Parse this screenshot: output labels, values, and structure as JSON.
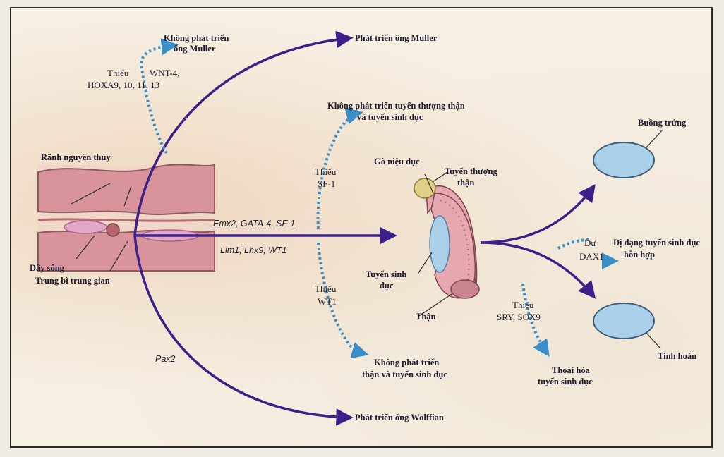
{
  "colors": {
    "arrow_main": "#3d1f8a",
    "arrow_dashed": "#3a8ec8",
    "tissue_pink": "#d9939a",
    "ovary_blue": "#a9cfe9",
    "frame": "#2b2b2b"
  },
  "labels": {
    "muller_dev": "Phát triển ống Muller",
    "no_muller_1": "Không phát triển",
    "no_muller_2": "ống Muller",
    "lack_wnt_1": "Thiếu",
    "lack_wnt_2": "WNT-4,",
    "lack_wnt_3": "HOXA9, 10, 11, 13",
    "no_adrenal_1": "Không phát triển tuyến thượng thận",
    "no_adrenal_2": "và tuyến sinh dục",
    "lack_sf1_1": "Thiếu",
    "lack_sf1_2": "SF-1",
    "urogenital_ridge": "Gò niệu dục",
    "adrenal_1": "Tuyến thượng",
    "adrenal_2": "thận",
    "primitive_streak": "Rãnh nguyên thủy",
    "notochord": "Dây sống",
    "intermediate_mesoderm": "Trung bì trung gian",
    "genes_top": "Emx2, GATA-4, SF-1",
    "genes_bottom": "Lim1, Lhx9, WT1",
    "gonad_1": "Tuyến sinh",
    "gonad_2": "dục",
    "kidney": "Thận",
    "lack_wt1_1": "Thiếu",
    "lack_wt1_2": "WT1",
    "no_kidney_1": "Không phát triển",
    "no_kidney_2": "thận và tuyến sinh dục",
    "pax2": "Pax2",
    "wolffian_dev": "Phát triển ống Wolffian",
    "ovary": "Buồng trứng",
    "excess": "Dư",
    "dax1": "DAX1",
    "mixed_gonad_1": "Dị dạng tuyến sinh dục",
    "mixed_gonad_2": "hỗn hợp",
    "lack_sry_1": "Thiếu",
    "lack_sry_2": "SRY, SOX9",
    "gonad_regress_1": "Thoái hóa",
    "gonad_regress_2": "tuyến sinh dục",
    "testis": "Tinh hoàn"
  }
}
